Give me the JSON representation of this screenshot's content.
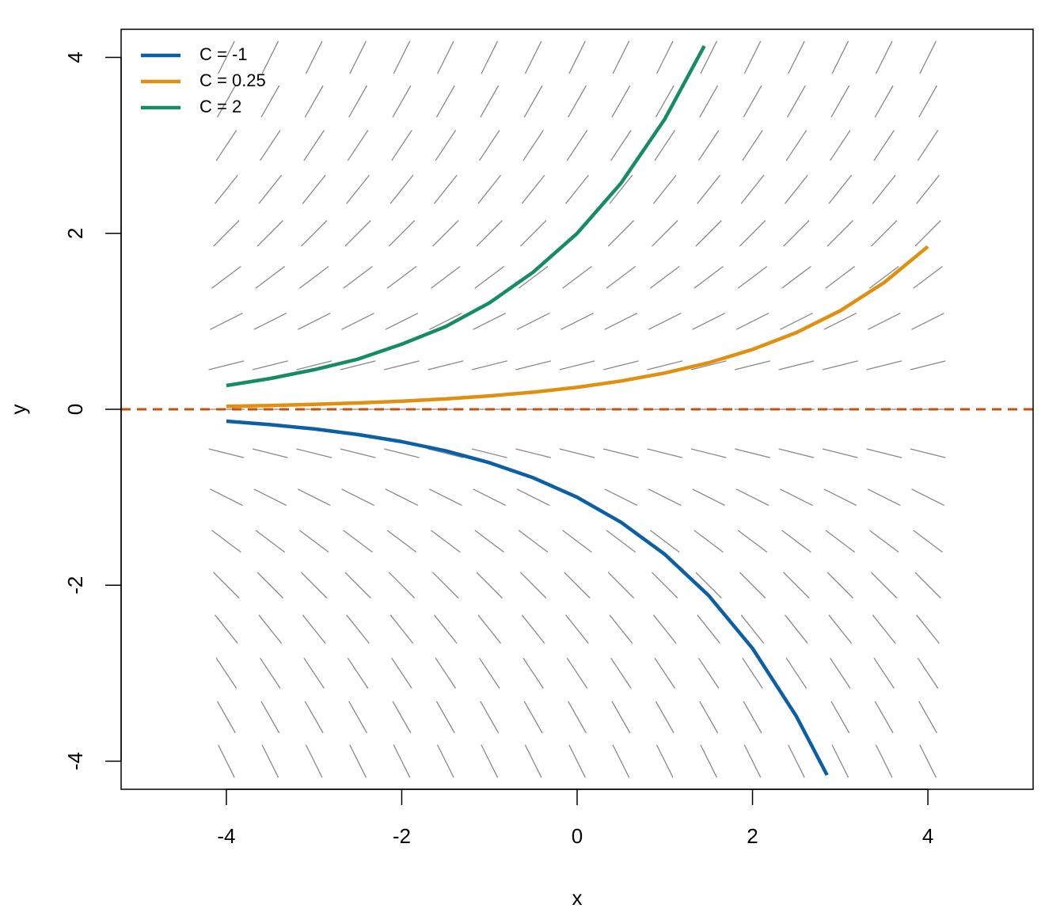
{
  "chart_data": {
    "type": "line",
    "xlabel": "x",
    "ylabel": "y",
    "xlim": [
      -5.2,
      5.2
    ],
    "ylim": [
      -4.32,
      4.32
    ],
    "xticks": [
      -4,
      -2,
      0,
      2,
      4
    ],
    "yticks": [
      -4,
      -2,
      0,
      2,
      4
    ],
    "legend": "top-left",
    "hline": {
      "value": 0,
      "color": "#c8500f"
    },
    "field": {
      "color": "#888888",
      "x": [
        -4,
        -3.5,
        -3,
        -2.5,
        -2,
        -1.5,
        -1,
        -0.5,
        0,
        0.5,
        1,
        1.5,
        2,
        2.5,
        3,
        3.5,
        4
      ],
      "y": [
        -4,
        -3.5,
        -3,
        -2.5,
        -2,
        -1.5,
        -1,
        -0.5,
        0,
        0.5,
        1,
        1.5,
        2,
        2.5,
        3,
        3.5,
        4
      ],
      "slope": [
        -2,
        -1.75,
        -1.5,
        -1.25,
        -1,
        -0.75,
        -0.5,
        -0.25,
        0,
        0.25,
        0.5,
        0.75,
        1,
        1.25,
        1.5,
        1.75,
        2
      ]
    },
    "series": [
      {
        "name": "C = -1",
        "color": "#0b5fa5",
        "x": [
          -4,
          -3.5,
          -3,
          -2.5,
          -2,
          -1.5,
          -1,
          -0.5,
          0,
          0.5,
          1,
          1.5,
          2,
          2.5,
          2.85
        ],
        "values": [
          -0.135,
          -0.174,
          -0.223,
          -0.287,
          -0.368,
          -0.472,
          -0.607,
          -0.779,
          -1,
          -1.284,
          -1.649,
          -2.117,
          -2.718,
          -3.49,
          -4.158
        ]
      },
      {
        "name": "C = 0.25",
        "color": "#e0900e",
        "x": [
          -4,
          -3.5,
          -3,
          -2.5,
          -2,
          -1.5,
          -1,
          -0.5,
          0,
          0.5,
          1,
          1.5,
          2,
          2.5,
          3,
          3.5,
          4
        ],
        "values": [
          0.034,
          0.043,
          0.056,
          0.072,
          0.092,
          0.118,
          0.152,
          0.195,
          0.25,
          0.321,
          0.412,
          0.529,
          0.68,
          0.872,
          1.12,
          1.44,
          1.85
        ]
      },
      {
        "name": "C = 2",
        "color": "#168c62",
        "x": [
          -4,
          -3.5,
          -3,
          -2.5,
          -2,
          -1.5,
          -1,
          -0.5,
          0,
          0.5,
          1,
          1.45
        ],
        "values": [
          0.27,
          0.35,
          0.45,
          0.57,
          0.74,
          0.94,
          1.21,
          1.56,
          2,
          2.57,
          3.3,
          4.13
        ]
      }
    ]
  }
}
